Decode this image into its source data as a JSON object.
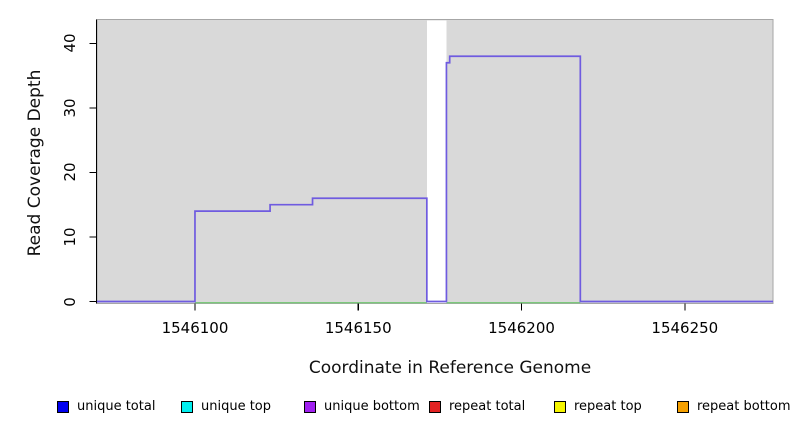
{
  "chart_data": {
    "type": "line",
    "title": "",
    "xlabel": "Coordinate in Reference Genome",
    "ylabel": "Read Coverage Depth",
    "xlim": [
      1546070,
      1546277
    ],
    "ylim": [
      0,
      43.7
    ],
    "x_ticks": [
      1546100,
      1546150,
      1546200,
      1546250
    ],
    "y_ticks": [
      0,
      10,
      20,
      30,
      40
    ],
    "grid": "off",
    "panel_background": "#d9d9d9",
    "panel_border": "#a6a6a6",
    "legend_position": "bottom",
    "series": [
      {
        "name": "unique bottom coverage step line",
        "color": "#6f5be0",
        "steps": [
          {
            "start": 1546070,
            "end": 1546100,
            "depth": 0
          },
          {
            "start": 1546100,
            "end": 1546123,
            "depth": 14
          },
          {
            "start": 1546123,
            "end": 1546136,
            "depth": 15
          },
          {
            "start": 1546136,
            "end": 1546171,
            "depth": 16
          },
          {
            "start": 1546171,
            "end": 1546177,
            "depth": 0
          },
          {
            "start": 1546177,
            "end": 1546178,
            "depth": 37
          },
          {
            "start": 1546178,
            "end": 1546218,
            "depth": 38
          },
          {
            "start": 1546218,
            "end": 1546277,
            "depth": 0
          }
        ]
      },
      {
        "name": "zero level line",
        "color": "#7cc87c",
        "segments": [
          [
            1546100,
            1546171
          ],
          [
            1546177,
            1546218
          ]
        ]
      }
    ],
    "uncovered_gap": {
      "start": 1546171,
      "end": 1546177
    }
  },
  "legend": {
    "items": [
      {
        "label": "unique total",
        "color": "#0000ee"
      },
      {
        "label": "unique top",
        "color": "#00eeee"
      },
      {
        "label": "unique bottom",
        "color": "#a020f0"
      },
      {
        "label": "repeat total",
        "color": "#e32222"
      },
      {
        "label": "repeat top",
        "color": "#f5f500"
      },
      {
        "label": "repeat bottom",
        "color": "#f5a000"
      }
    ]
  }
}
